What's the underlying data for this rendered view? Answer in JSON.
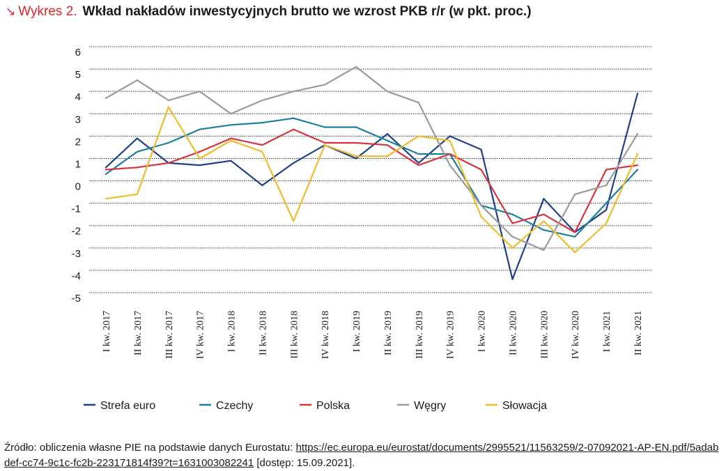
{
  "header": {
    "arrow": "↘",
    "label": "Wykres 2.",
    "title": "Wkład nakładów inwestycyjnych brutto we wzrost PKB r/r (w pkt. proc.)"
  },
  "chart_data": {
    "type": "line",
    "title": "Wkład nakładów inwestycyjnych brutto we wzrost PKB r/r (w pkt. proc.)",
    "xlabel": "",
    "ylabel": "",
    "ylim": [
      -5,
      6
    ],
    "yticks": [
      6,
      5,
      4,
      3,
      2,
      1,
      0,
      -1,
      -2,
      -3,
      -4,
      -5
    ],
    "grid": true,
    "legend_position": "bottom",
    "categories": [
      "I kw. 2017",
      "II kw. 2017",
      "III kw. 2017",
      "IV kw. 2017",
      "I kw. 2018",
      "II kw. 2018",
      "III kw. 2018",
      "IV kw. 2018",
      "I kw. 2019",
      "II kw. 2019",
      "III kw. 2019",
      "IV kw. 2019",
      "I kw. 2020",
      "II kw. 2020",
      "III kw. 2020",
      "IV kw. 2020",
      "I kw. 2021",
      "II kw. 2021"
    ],
    "series": [
      {
        "name": "Strefa euro",
        "color": "#1f3f8a",
        "values": [
          0.6,
          1.9,
          0.8,
          0.7,
          0.9,
          -0.2,
          0.8,
          1.6,
          1.0,
          2.1,
          0.8,
          2.0,
          1.4,
          -4.4,
          -0.8,
          -2.3,
          -1.3,
          3.9
        ]
      },
      {
        "name": "Czechy",
        "color": "#1a7f9f",
        "values": [
          0.3,
          1.3,
          1.7,
          2.3,
          2.5,
          2.6,
          2.8,
          2.4,
          2.4,
          1.8,
          1.2,
          1.2,
          -1.1,
          -1.5,
          -2.2,
          -2.5,
          -1.0,
          0.5
        ]
      },
      {
        "name": "Polska",
        "color": "#d8323c",
        "values": [
          0.5,
          0.6,
          0.8,
          1.3,
          1.9,
          1.6,
          2.3,
          1.7,
          1.7,
          1.6,
          0.7,
          1.2,
          0.5,
          -1.9,
          -1.5,
          -2.3,
          0.5,
          0.7
        ]
      },
      {
        "name": "Węgry",
        "color": "#9a9a9a",
        "values": [
          3.7,
          4.5,
          3.6,
          4.0,
          3.0,
          3.6,
          4.0,
          4.3,
          5.1,
          4.0,
          3.5,
          0.7,
          -1.1,
          -2.5,
          -3.1,
          -0.6,
          -0.2,
          2.1
        ]
      },
      {
        "name": "Słowacja",
        "color": "#f0bb2a",
        "values": [
          -0.8,
          -0.6,
          3.3,
          1.0,
          1.8,
          1.3,
          -1.8,
          1.6,
          1.1,
          1.1,
          2.0,
          1.8,
          -1.6,
          -3.0,
          -1.8,
          -3.2,
          -1.9,
          1.2
        ]
      }
    ]
  },
  "source": {
    "prefix": "Źródło: obliczenia własne PIE na podstawie danych Eurostatu: ",
    "link": "https://ec.europa.eu/eurostat/documents/2995521/11563259/2-07092021-AP-EN.pdf/5adabdef-cc74-9c1c-fc2b-223171814f39?t=1631003082241",
    "suffix": " [dostęp: 15.09.2021]."
  }
}
